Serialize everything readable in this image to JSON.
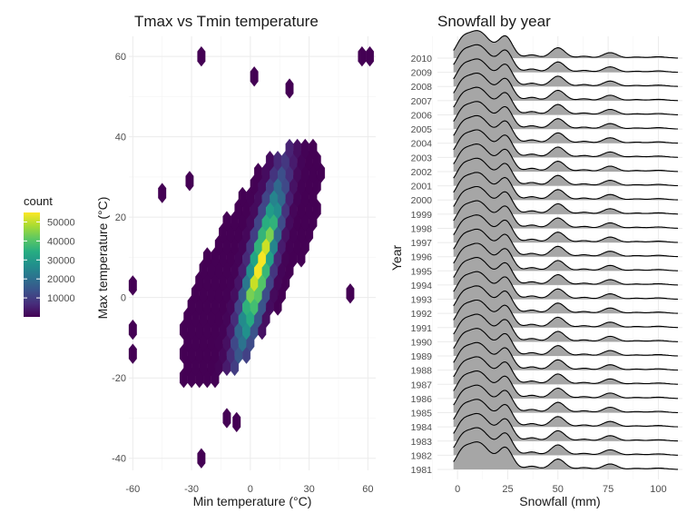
{
  "chart_data": [
    {
      "type": "hexbin",
      "title": "Tmax vs Tmin temperature",
      "xlabel": "Min temperature (°C)",
      "ylabel": "Max temperature (°C)",
      "xlim": [
        -62,
        64
      ],
      "ylim": [
        -43,
        65
      ],
      "xticks": [
        -60,
        -30,
        0,
        30,
        60
      ],
      "yticks": [
        -40,
        -20,
        0,
        20,
        40,
        60
      ],
      "legend": {
        "title": "count",
        "placement": "left",
        "ticks": [
          10000,
          20000,
          30000,
          40000,
          50000
        ],
        "tick_labels": [
          "10000",
          "20000",
          "30000",
          "40000",
          "50000"
        ],
        "range": [
          1,
          55000
        ],
        "colors": [
          "#440154",
          "#3b528b",
          "#21908c",
          "#5dc863",
          "#fde725"
        ]
      },
      "density_ridge": {
        "center_x": 5,
        "center_y": 8,
        "direction": [
          0.5,
          1.0
        ],
        "peak_count": 55000
      }
    },
    {
      "type": "ridgeline",
      "title": "Snowfall by year",
      "xlabel": "Snowfall (mm)",
      "ylabel": "Year",
      "xlim": [
        -10,
        112
      ],
      "xticks": [
        0,
        25,
        50,
        75,
        100
      ],
      "years": [
        1981,
        1982,
        1983,
        1984,
        1985,
        1986,
        1987,
        1988,
        1989,
        1990,
        1991,
        1992,
        1993,
        1994,
        1995,
        1996,
        1997,
        1998,
        1999,
        2000,
        2001,
        2002,
        2003,
        2004,
        2005,
        2006,
        2007,
        2008,
        2009,
        2010
      ],
      "fill_color": "#a6a6a6",
      "line_color": "#000000",
      "density_peaks": [
        {
          "x": 2,
          "height": 0.35,
          "width": 3
        },
        {
          "x": 10,
          "height": 1.0,
          "width": 6
        },
        {
          "x": 24,
          "height": 0.75,
          "width": 3.5
        },
        {
          "x": 37,
          "height": 0.12,
          "width": 3
        },
        {
          "x": 50,
          "height": 0.38,
          "width": 3.5
        },
        {
          "x": 63,
          "height": 0.07,
          "width": 3
        },
        {
          "x": 76,
          "height": 0.2,
          "width": 3.5
        },
        {
          "x": 89,
          "height": 0.04,
          "width": 3
        },
        {
          "x": 100,
          "height": 0.05,
          "width": 4
        }
      ]
    }
  ]
}
